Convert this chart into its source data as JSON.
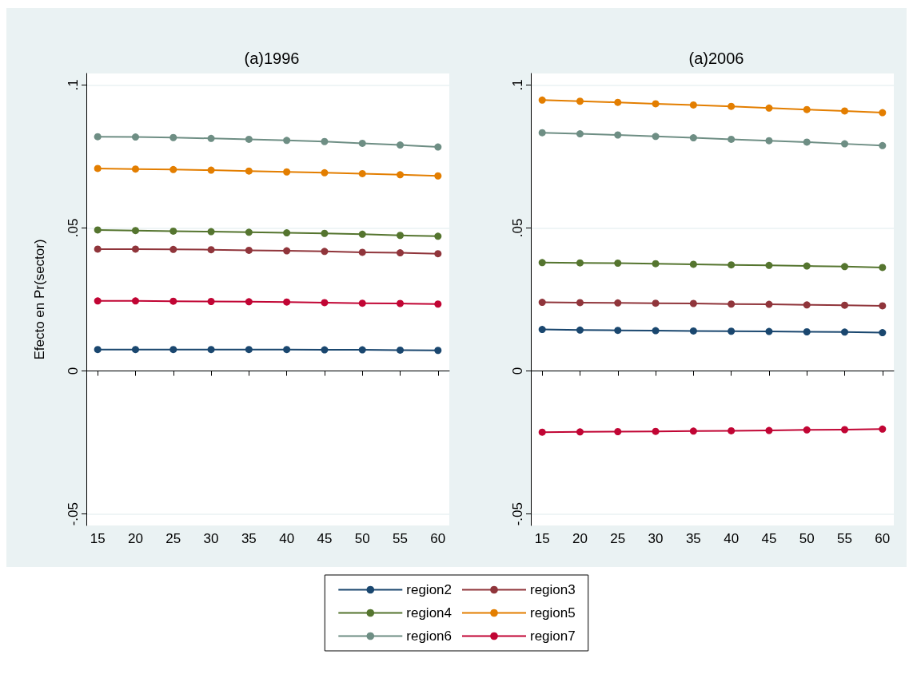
{
  "chart_data": [
    {
      "type": "line",
      "title": "(a)1996",
      "ylabel": "Efecto en Pr(sector)",
      "x": [
        15,
        20,
        25,
        30,
        35,
        40,
        45,
        50,
        55,
        60
      ],
      "xlim": [
        13.5,
        61.5
      ],
      "xticks": [
        15,
        20,
        25,
        30,
        35,
        40,
        45,
        50,
        55,
        60
      ],
      "ylim": [
        -0.054,
        0.104
      ],
      "yticks": [
        {
          "value": -0.05,
          "label": "-.05"
        },
        {
          "value": 0,
          "label": "0"
        },
        {
          "value": 0.05,
          "label": ".05"
        },
        {
          "value": 0.1,
          "label": ".1"
        }
      ],
      "grid": "y",
      "marker": "circle",
      "legend": "bottom",
      "series": [
        {
          "name": "region2",
          "color": "#1a476f",
          "values": [
            0.0075,
            0.0075,
            0.0075,
            0.0075,
            0.0075,
            0.0075,
            0.0074,
            0.0074,
            0.0073,
            0.0072
          ]
        },
        {
          "name": "region3",
          "color": "#90353b",
          "values": [
            0.0426,
            0.0426,
            0.0425,
            0.0424,
            0.0422,
            0.042,
            0.0418,
            0.0415,
            0.0413,
            0.041
          ]
        },
        {
          "name": "region4",
          "color": "#55752f",
          "values": [
            0.0493,
            0.0491,
            0.0489,
            0.0487,
            0.0485,
            0.0483,
            0.0481,
            0.0478,
            0.0474,
            0.0471
          ]
        },
        {
          "name": "region5",
          "color": "#e37e00",
          "values": [
            0.0708,
            0.0706,
            0.0704,
            0.0702,
            0.0699,
            0.0696,
            0.0693,
            0.069,
            0.0686,
            0.0682
          ]
        },
        {
          "name": "region6",
          "color": "#6e8e84",
          "values": [
            0.0819,
            0.0818,
            0.0816,
            0.0813,
            0.081,
            0.0806,
            0.0802,
            0.0796,
            0.079,
            0.0783
          ]
        },
        {
          "name": "region7",
          "color": "#c10534",
          "values": [
            0.0245,
            0.0245,
            0.0244,
            0.0243,
            0.0242,
            0.0241,
            0.0239,
            0.0237,
            0.0236,
            0.0234
          ]
        }
      ]
    },
    {
      "type": "line",
      "title": "(a)2006",
      "x": [
        15,
        20,
        25,
        30,
        35,
        40,
        45,
        50,
        55,
        60
      ],
      "xlim": [
        13.5,
        61.5
      ],
      "xticks": [
        15,
        20,
        25,
        30,
        35,
        40,
        45,
        50,
        55,
        60
      ],
      "ylim": [
        -0.054,
        0.104
      ],
      "yticks": [
        {
          "value": -0.05,
          "label": "-.05"
        },
        {
          "value": 0,
          "label": "0"
        },
        {
          "value": 0.05,
          "label": ".05"
        },
        {
          "value": 0.1,
          "label": ".1"
        }
      ],
      "grid": "y",
      "marker": "circle",
      "legend": "bottom",
      "series": [
        {
          "name": "region2",
          "color": "#1a476f",
          "values": [
            0.0145,
            0.0143,
            0.0142,
            0.0141,
            0.014,
            0.0139,
            0.0138,
            0.0137,
            0.0136,
            0.0134
          ]
        },
        {
          "name": "region3",
          "color": "#90353b",
          "values": [
            0.024,
            0.0239,
            0.0238,
            0.0237,
            0.0236,
            0.0234,
            0.0233,
            0.0231,
            0.023,
            0.0228
          ]
        },
        {
          "name": "region4",
          "color": "#55752f",
          "values": [
            0.0379,
            0.0378,
            0.0377,
            0.0375,
            0.0373,
            0.0371,
            0.0369,
            0.0367,
            0.0365,
            0.0362
          ]
        },
        {
          "name": "region5",
          "color": "#e37e00",
          "values": [
            0.0947,
            0.0943,
            0.0939,
            0.0934,
            0.093,
            0.0925,
            0.0919,
            0.0914,
            0.0909,
            0.0903
          ]
        },
        {
          "name": "region6",
          "color": "#6e8e84",
          "values": [
            0.0833,
            0.0829,
            0.0825,
            0.082,
            0.0815,
            0.081,
            0.0805,
            0.08,
            0.0794,
            0.0788
          ]
        },
        {
          "name": "region7",
          "color": "#c10534",
          "values": [
            -0.0214,
            -0.0213,
            -0.0212,
            -0.0211,
            -0.021,
            -0.0209,
            -0.0208,
            -0.0206,
            -0.0205,
            -0.0203
          ]
        }
      ]
    }
  ]
}
